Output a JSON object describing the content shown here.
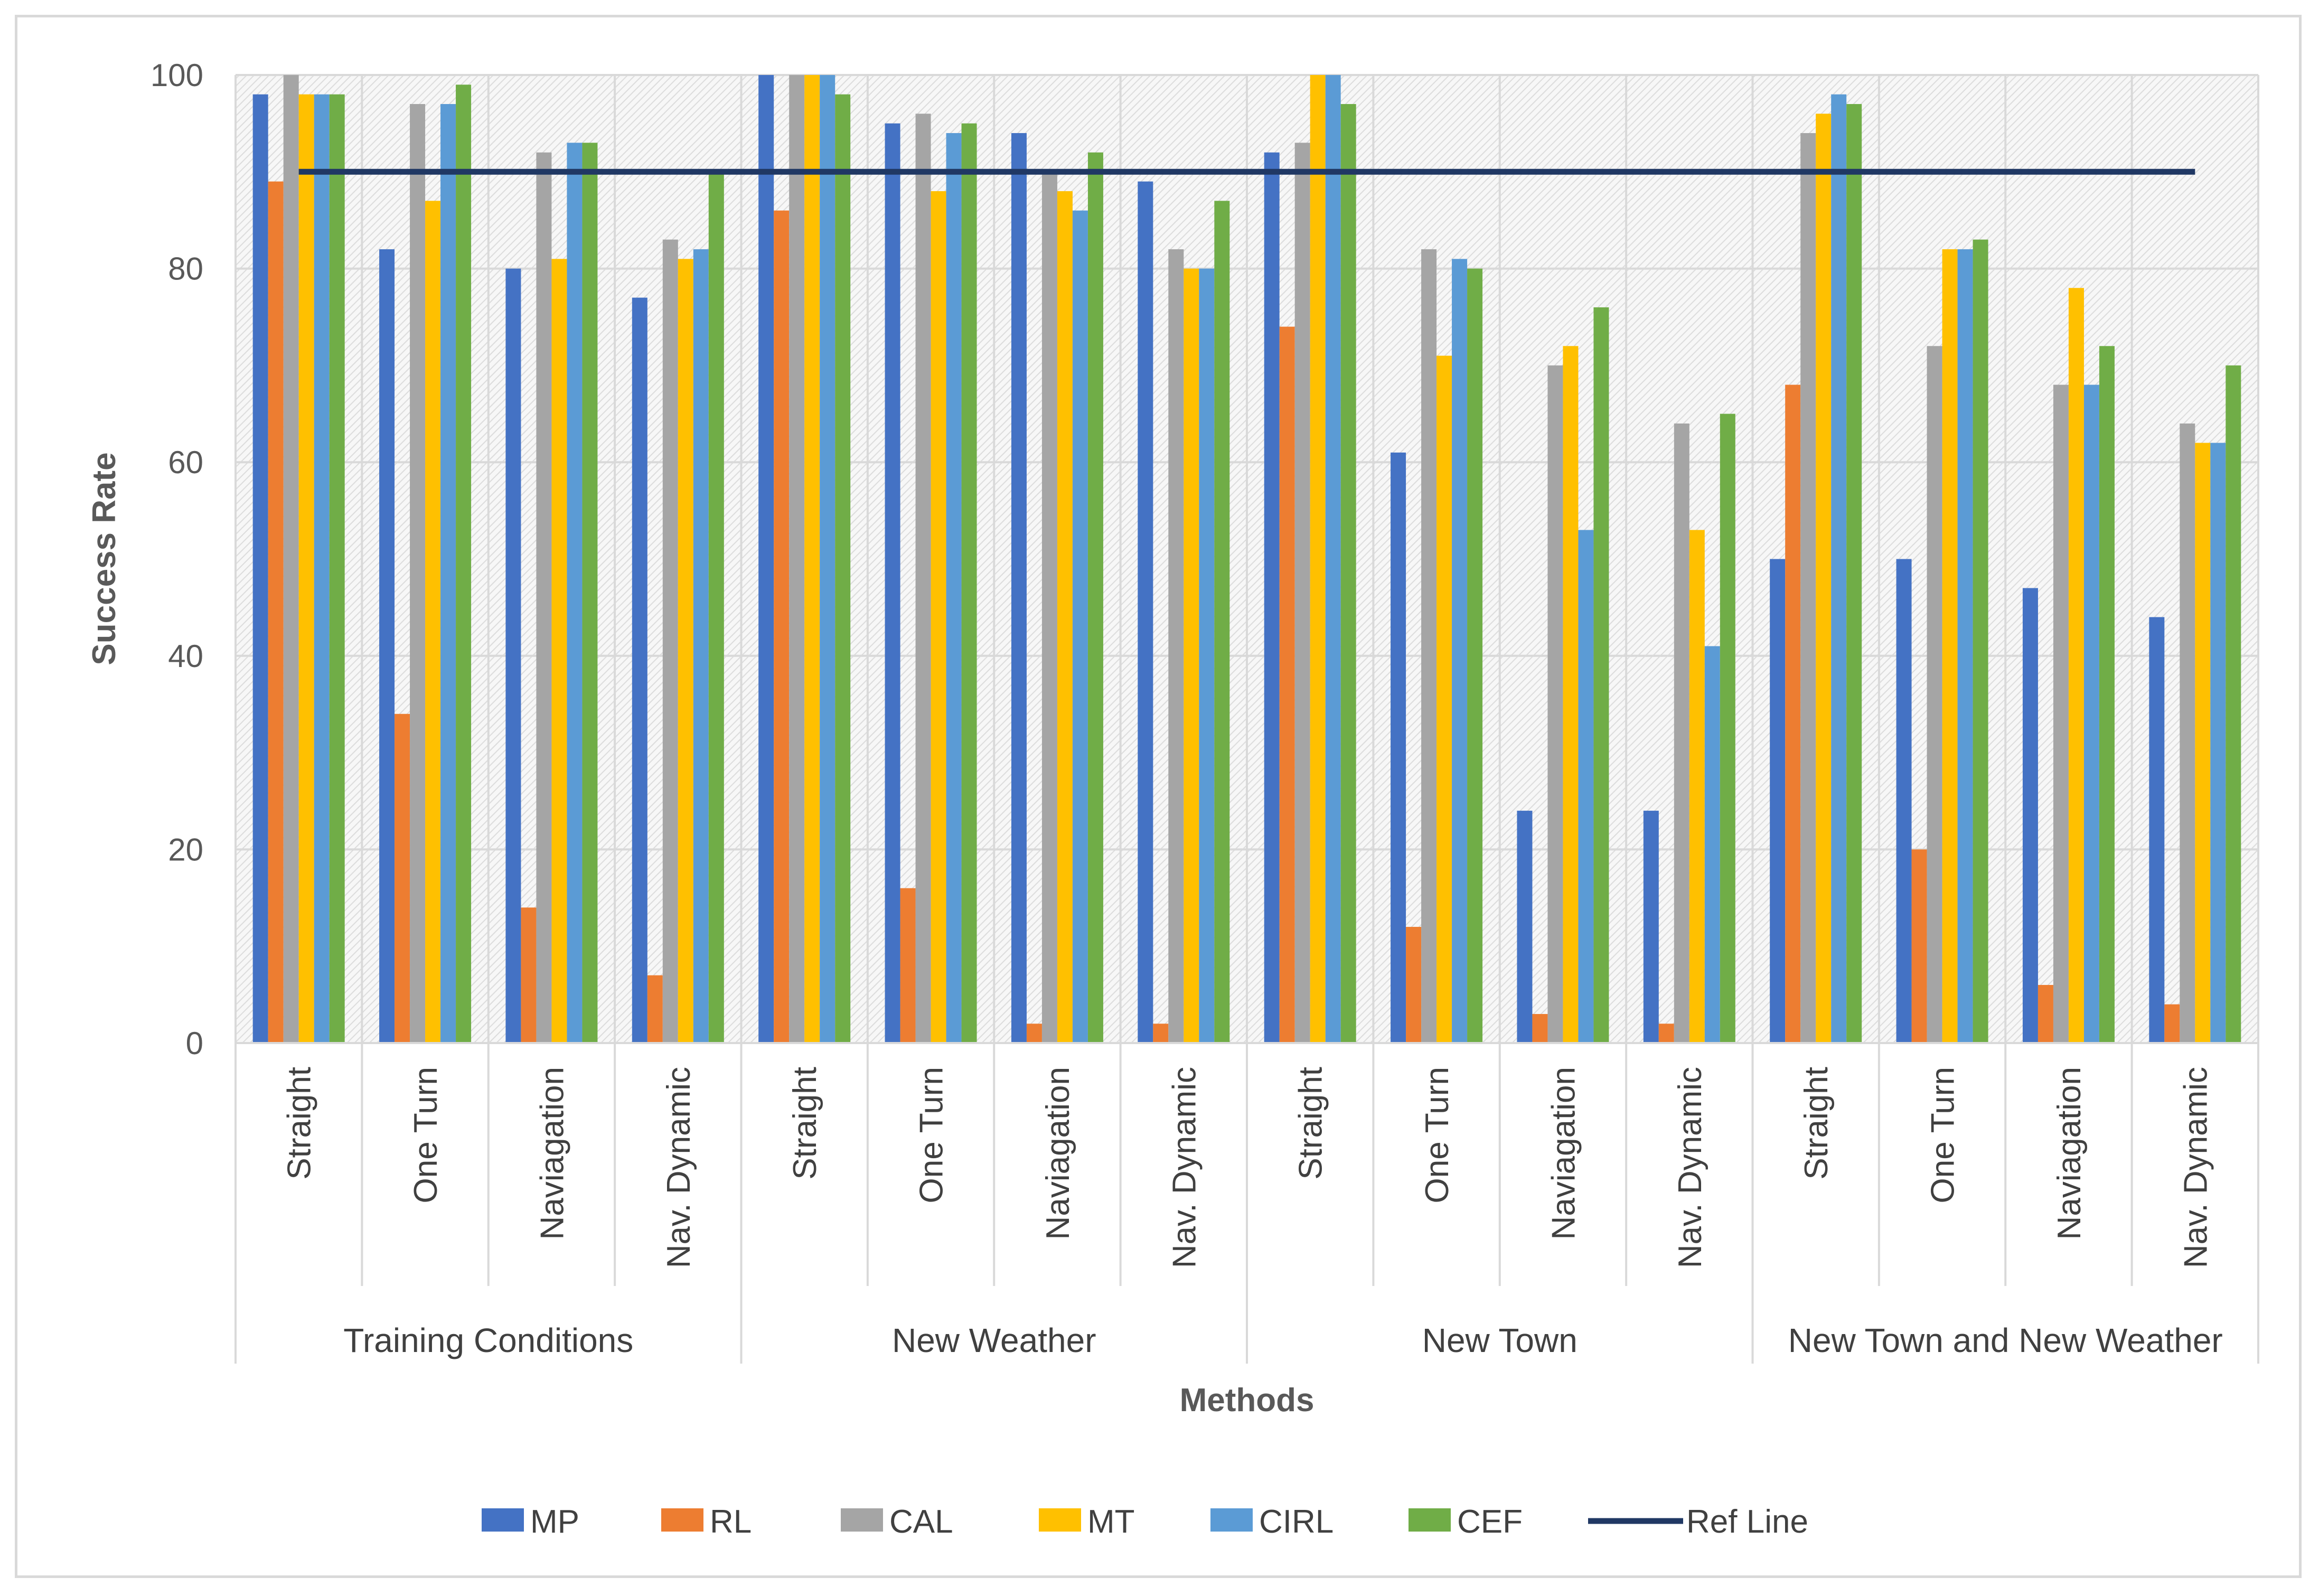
{
  "chart_data": {
    "type": "bar",
    "title": "",
    "xlabel": "Methods",
    "ylabel": "Success Rate",
    "ylim": [
      0,
      100
    ],
    "yticks": [
      0,
      20,
      40,
      60,
      80,
      100
    ],
    "grid": true,
    "legend_position": "bottom",
    "groups": [
      {
        "label": "Training Conditions",
        "categories": [
          "Straight",
          "One Turn",
          "Naviagation",
          "Nav. Dynamic"
        ]
      },
      {
        "label": "New Weather",
        "categories": [
          "Straight",
          "One Turn",
          "Naviagation",
          "Nav. Dynamic"
        ]
      },
      {
        "label": "New Town",
        "categories": [
          "Straight",
          "One Turn",
          "Naviagation",
          "Nav. Dynamic"
        ]
      },
      {
        "label": "New Town and New Weather",
        "categories": [
          "Straight",
          "One Turn",
          "Naviagation",
          "Nav. Dynamic"
        ]
      }
    ],
    "series": [
      {
        "name": "MP",
        "color": "#4472c4",
        "values": [
          98,
          82,
          80,
          77,
          100,
          95,
          94,
          89,
          92,
          61,
          24,
          24,
          50,
          50,
          47,
          44
        ]
      },
      {
        "name": "RL",
        "color": "#ed7d31",
        "values": [
          89,
          34,
          14,
          7,
          86,
          16,
          2,
          2,
          74,
          12,
          3,
          2,
          68,
          20,
          6,
          4
        ]
      },
      {
        "name": "CAL",
        "color": "#a5a5a5",
        "values": [
          100,
          97,
          92,
          83,
          100,
          96,
          90,
          82,
          93,
          82,
          70,
          64,
          94,
          72,
          68,
          64
        ]
      },
      {
        "name": "MT",
        "color": "#ffc000",
        "values": [
          98,
          87,
          81,
          81,
          100,
          88,
          88,
          80,
          100,
          71,
          72,
          53,
          96,
          82,
          78,
          62
        ]
      },
      {
        "name": "CIRL",
        "color": "#5b9bd5",
        "values": [
          98,
          97,
          93,
          82,
          100,
          94,
          86,
          80,
          100,
          81,
          53,
          41,
          98,
          82,
          68,
          62
        ]
      },
      {
        "name": "CEF",
        "color": "#70ad47",
        "values": [
          98,
          99,
          93,
          90,
          98,
          95,
          92,
          87,
          97,
          80,
          76,
          65,
          97,
          83,
          72,
          70
        ]
      }
    ],
    "ref_line": {
      "name": "Ref Line",
      "value": 90,
      "color": "#203864"
    }
  }
}
